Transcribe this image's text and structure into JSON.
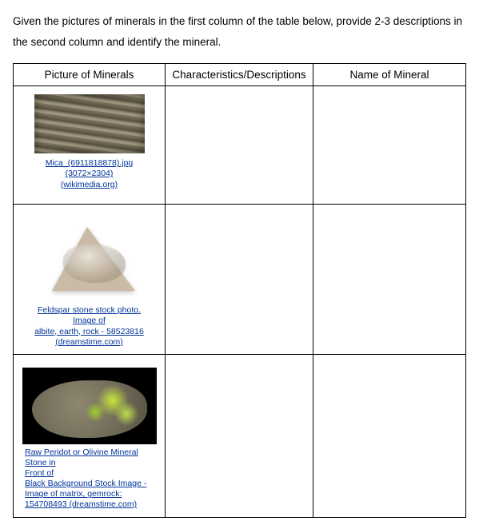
{
  "instructions": "Given the pictures of minerals in the first column of the table below, provide 2-3 descriptions in the second column and identify the mineral.",
  "headers": {
    "picture": "Picture of Minerals",
    "desc": "Characteristics/Descriptions",
    "name": "Name of Mineral"
  },
  "rows": [
    {
      "caption_lines": [
        "Mica_(6911818878).jpg (3072×2304)",
        "(wikimedia.org)"
      ],
      "caption_align": "center",
      "img_key": "mica",
      "desc": "",
      "name": ""
    },
    {
      "caption_lines": [
        "Feldspar stone stock photo. Image of",
        "albite, earth, rock - 58523816",
        "(dreamstime.com)"
      ],
      "caption_align": "center",
      "img_key": "feldspar",
      "desc": "",
      "name": ""
    },
    {
      "caption_lines": [
        "Raw Peridot or Olivine Mineral Stone in",
        "Front of",
        "Black Background Stock Image -",
        "Image of matrix, gemrock:",
        "154708493 (dreamstime.com)"
      ],
      "caption_align": "left",
      "img_key": "olivine",
      "desc": "",
      "name": ""
    }
  ],
  "colors": {
    "link": "#003399",
    "text": "#000000",
    "border": "#000000"
  }
}
